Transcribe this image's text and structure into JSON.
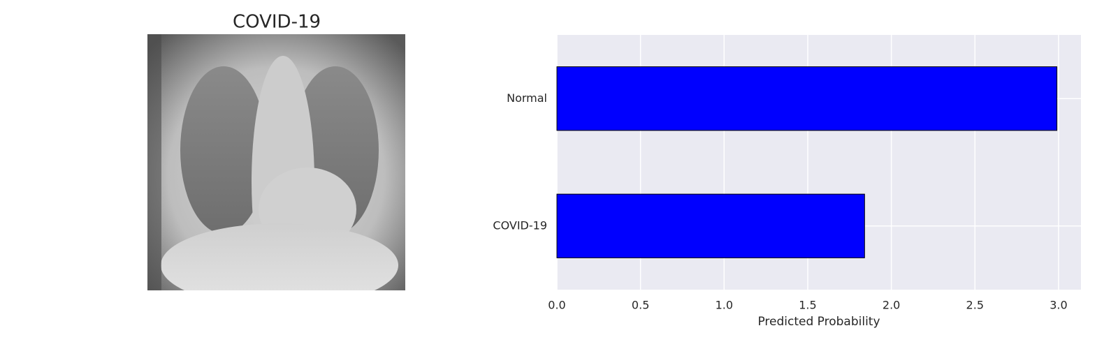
{
  "image_panel": {
    "title": "COVID-19"
  },
  "chart_data": {
    "type": "barh",
    "categories": [
      "COVID-19",
      "Normal"
    ],
    "values": [
      1.84,
      2.99
    ],
    "color": "#0000ff",
    "edgecolor": "#000000",
    "xlabel": "Predicted Probability",
    "xlim": [
      0,
      3.134
    ],
    "xticks": [
      {
        "value": 0,
        "label": "0.0"
      },
      0.5,
      {
        "value": 1,
        "label": "1.0"
      },
      1.5,
      {
        "value": 2,
        "label": "2.0"
      },
      2.5,
      {
        "value": 3,
        "label": "3.0"
      }
    ],
    "grid": true
  }
}
